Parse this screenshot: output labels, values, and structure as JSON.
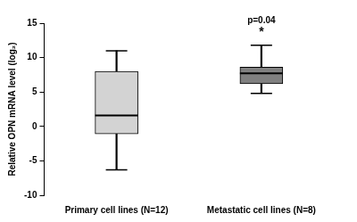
{
  "chart_data": {
    "type": "box",
    "y_label": "Relative OPN mRNA level (log₂)",
    "categories": [
      "Primary cell lines (N=12)",
      "Metastatic cell lines (N=8)"
    ],
    "values": [
      {
        "min": -6.3,
        "q1": -1.1,
        "median": 1.6,
        "q3": 8.0,
        "max": 11.0
      },
      {
        "min": 4.8,
        "q1": 6.2,
        "median": 7.7,
        "q3": 8.6,
        "max": 11.8
      }
    ],
    "colors": [
      "#d3d3d3",
      "#808080"
    ],
    "ylim": [
      -10,
      15
    ],
    "yticks": [
      -10,
      -5,
      0,
      5,
      10,
      15
    ],
    "grid": false,
    "annotations": [
      {
        "text": "p=0.04",
        "x": "Metastatic cell lines (N=8)"
      },
      {
        "text": "*",
        "x": "Metastatic cell lines (N=8)"
      }
    ]
  }
}
